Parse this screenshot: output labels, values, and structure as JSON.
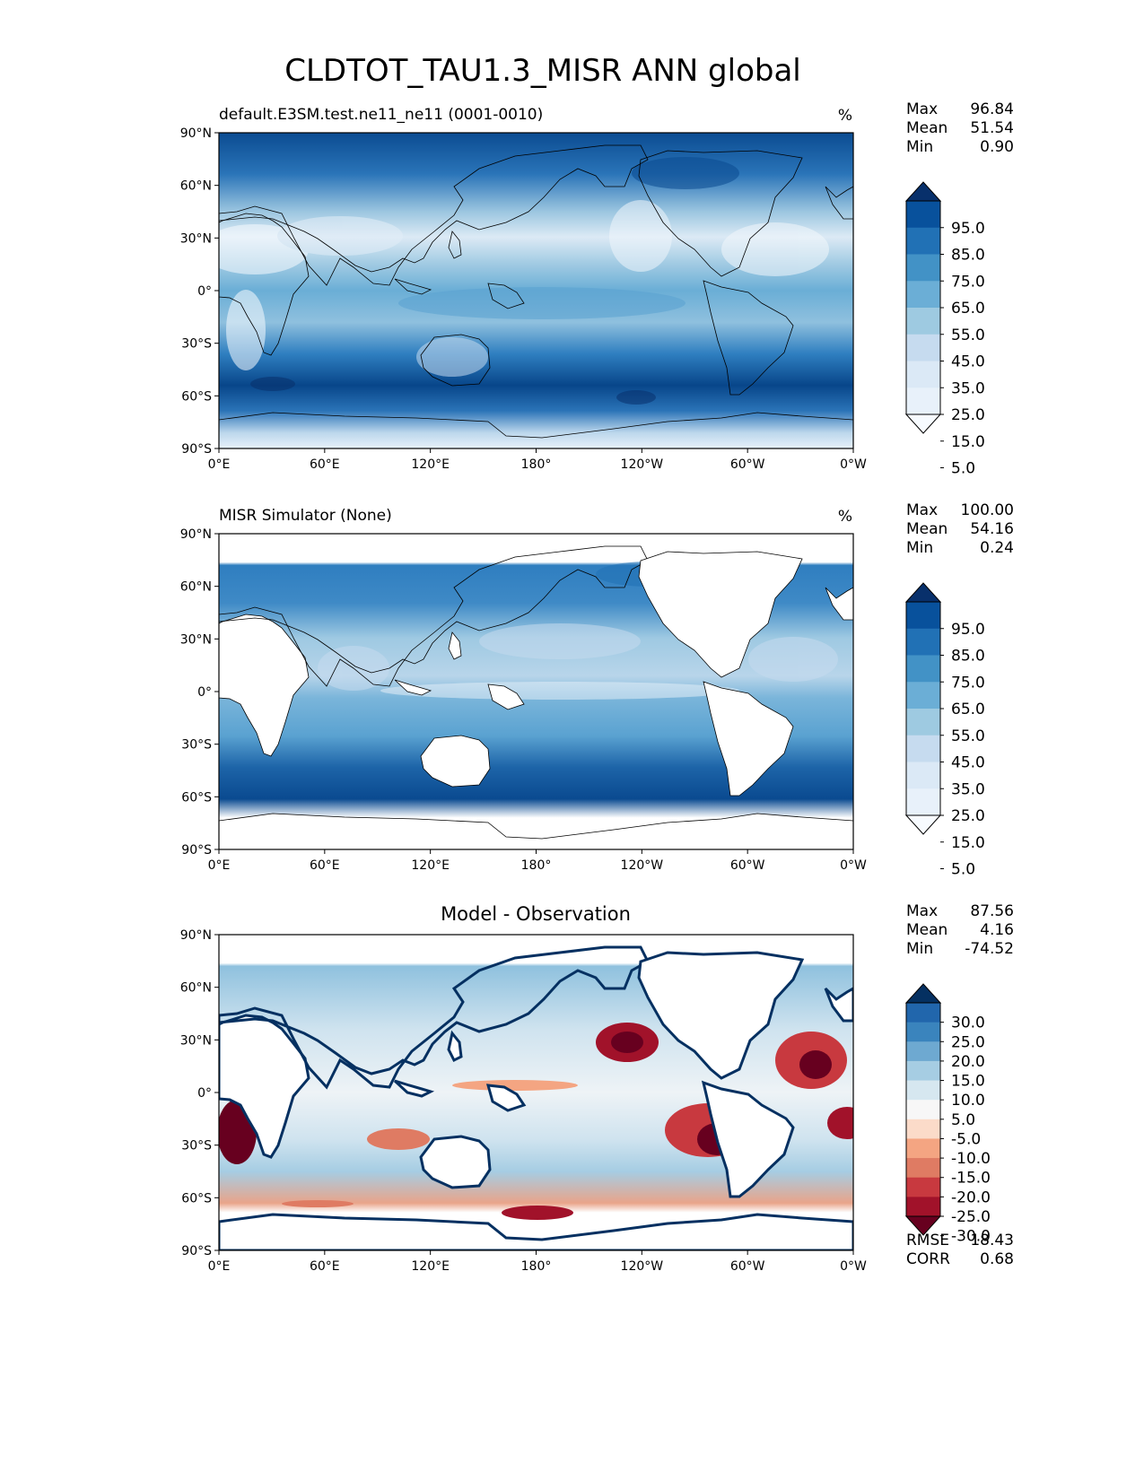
{
  "title": "CLDTOT_TAU1.3_MISR ANN global",
  "chart_data": [
    {
      "type": "heatmap",
      "title": "default.E3SM.test.ne11_ne11 (0001-0010)",
      "units": "%",
      "stats": [
        {
          "label": "Max",
          "value": "96.84"
        },
        {
          "label": "Mean",
          "value": "51.54"
        },
        {
          "label": "Min",
          "value": "0.90"
        }
      ],
      "colorbar": {
        "levels": [
          "95.0",
          "85.0",
          "75.0",
          "65.0",
          "55.0",
          "45.0",
          "35.0",
          "25.0",
          "15.0",
          "5.0"
        ],
        "colors": [
          "#08306b",
          "#08519c",
          "#2171b5",
          "#4292c6",
          "#6baed6",
          "#9ecae1",
          "#c6dbef",
          "#dbe9f6",
          "#e8f1fa",
          "#f7fbff"
        ],
        "extend": "both"
      },
      "xticks": [
        "0°E",
        "60°E",
        "120°E",
        "180°",
        "120°W",
        "60°W",
        "0°W"
      ],
      "yticks": [
        "90°N",
        "60°N",
        "30°N",
        "0°",
        "30°S",
        "60°S",
        "90°S"
      ],
      "extra": []
    },
    {
      "type": "heatmap",
      "title": "MISR Simulator (None)",
      "units": "%",
      "stats": [
        {
          "label": "Max",
          "value": "100.00"
        },
        {
          "label": "Mean",
          "value": "54.16"
        },
        {
          "label": "Min",
          "value": "0.24"
        }
      ],
      "colorbar": {
        "levels": [
          "95.0",
          "85.0",
          "75.0",
          "65.0",
          "55.0",
          "45.0",
          "35.0",
          "25.0",
          "15.0",
          "5.0"
        ],
        "colors": [
          "#08306b",
          "#08519c",
          "#2171b5",
          "#4292c6",
          "#6baed6",
          "#9ecae1",
          "#c6dbef",
          "#dbe9f6",
          "#e8f1fa",
          "#f7fbff"
        ],
        "extend": "both"
      },
      "xticks": [
        "0°E",
        "60°E",
        "120°E",
        "180°",
        "120°W",
        "60°W",
        "0°W"
      ],
      "yticks": [
        "90°N",
        "60°N",
        "30°N",
        "0°",
        "30°S",
        "60°S",
        "90°S"
      ],
      "extra": []
    },
    {
      "type": "heatmap",
      "title": "Model - Observation",
      "units": "",
      "stats": [
        {
          "label": "Max",
          "value": "87.56"
        },
        {
          "label": "Mean",
          "value": "4.16"
        },
        {
          "label": "Min",
          "value": "-74.52"
        }
      ],
      "colorbar": {
        "levels": [
          "30.0",
          "25.0",
          "20.0",
          "15.0",
          "10.0",
          "5.0",
          "-5.0",
          "-10.0",
          "-15.0",
          "-20.0",
          "-25.0",
          "-30.0"
        ],
        "colors": [
          "#053061",
          "#2166ac",
          "#3a84bd",
          "#6ea9d1",
          "#a6cde3",
          "#d6e7f0",
          "#f7f7f7",
          "#fbdbc9",
          "#f4a582",
          "#df7b63",
          "#c8393f",
          "#a1122a",
          "#67001f"
        ],
        "extend": "both"
      },
      "xticks": [
        "0°E",
        "60°E",
        "120°E",
        "180°",
        "120°W",
        "60°W",
        "0°W"
      ],
      "yticks": [
        "90°N",
        "60°N",
        "30°N",
        "0°",
        "30°S",
        "60°S",
        "90°S"
      ],
      "extra": [
        {
          "label": "RMSE",
          "value": "18.43"
        },
        {
          "label": "CORR",
          "value": "0.68"
        }
      ]
    }
  ]
}
